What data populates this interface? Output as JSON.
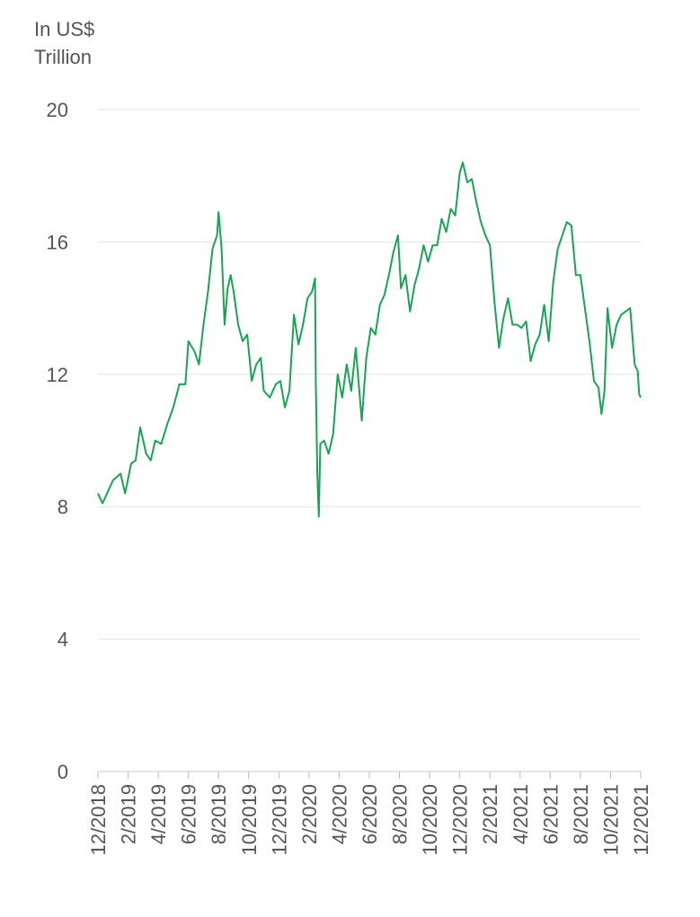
{
  "chart_data": {
    "type": "line",
    "ylabel": [
      "In US$",
      "Trillion"
    ],
    "ylim": [
      0,
      20
    ],
    "yticks": [
      0,
      4,
      8,
      12,
      16,
      20
    ],
    "xlim": [
      0,
      36
    ],
    "xticks": [
      {
        "value": 0,
        "label": "12/2018"
      },
      {
        "value": 2,
        "label": "2/2019"
      },
      {
        "value": 4,
        "label": "4/2019"
      },
      {
        "value": 6,
        "label": "6/2019"
      },
      {
        "value": 8,
        "label": "8/2019"
      },
      {
        "value": 10,
        "label": "10/2019"
      },
      {
        "value": 12,
        "label": "12/2019"
      },
      {
        "value": 14,
        "label": "2/2020"
      },
      {
        "value": 16,
        "label": "4/2020"
      },
      {
        "value": 18,
        "label": "6/2020"
      },
      {
        "value": 20,
        "label": "8/2020"
      },
      {
        "value": 22,
        "label": "10/2020"
      },
      {
        "value": 24,
        "label": "12/2020"
      },
      {
        "value": 26,
        "label": "2/2021"
      },
      {
        "value": 28,
        "label": "4/2021"
      },
      {
        "value": 30,
        "label": "6/2021"
      },
      {
        "value": 32,
        "label": "8/2021"
      },
      {
        "value": 34,
        "label": "10/2021"
      },
      {
        "value": 36,
        "label": "12/2021"
      }
    ],
    "grid": true,
    "series": [
      {
        "color": "#1aa355",
        "x": [
          0,
          0.3,
          0.6,
          1.0,
          1.5,
          1.8,
          2.2,
          2.5,
          2.8,
          3.2,
          3.5,
          3.8,
          4.2,
          4.6,
          5.0,
          5.4,
          5.8,
          6.0,
          6.4,
          6.7,
          7.0,
          7.3,
          7.6,
          7.9,
          8.0,
          8.2,
          8.4,
          8.6,
          8.8,
          9.0,
          9.3,
          9.6,
          9.9,
          10.2,
          10.5,
          10.8,
          11.0,
          11.4,
          11.8,
          12.1,
          12.4,
          12.7,
          13.0,
          13.3,
          13.6,
          13.9,
          14.2,
          14.4,
          14.45,
          14.55,
          14.65,
          14.75,
          15.0,
          15.3,
          15.6,
          15.9,
          16.2,
          16.5,
          16.8,
          17.1,
          17.5,
          17.8,
          18.1,
          18.4,
          18.7,
          19.0,
          19.3,
          19.6,
          19.9,
          20.1,
          20.4,
          20.7,
          21.0,
          21.3,
          21.6,
          21.9,
          22.2,
          22.5,
          22.8,
          23.1,
          23.4,
          23.7,
          24.0,
          24.2,
          24.5,
          24.8,
          25.1,
          25.4,
          25.7,
          26.0,
          26.3,
          26.6,
          26.9,
          27.2,
          27.5,
          27.8,
          28.1,
          28.4,
          28.7,
          29.0,
          29.3,
          29.6,
          29.9,
          30.2,
          30.5,
          30.8,
          31.1,
          31.4,
          31.7,
          32.0,
          32.3,
          32.6,
          32.9,
          33.2,
          33.4,
          33.6,
          33.8,
          34.1,
          34.4,
          34.7,
          35.0,
          35.3,
          35.6,
          35.8,
          35.9,
          36.0
        ],
        "values": [
          8.4,
          8.1,
          8.4,
          8.8,
          9.0,
          8.4,
          9.3,
          9.4,
          10.4,
          9.6,
          9.4,
          10.0,
          9.9,
          10.5,
          11.0,
          11.7,
          11.7,
          13.0,
          12.7,
          12.3,
          13.5,
          14.5,
          15.8,
          16.2,
          16.9,
          15.8,
          13.5,
          14.6,
          15.0,
          14.5,
          13.5,
          13.0,
          13.2,
          11.8,
          12.3,
          12.5,
          11.5,
          11.3,
          11.7,
          11.8,
          11.0,
          11.5,
          13.8,
          12.9,
          13.5,
          14.3,
          14.5,
          14.9,
          11.8,
          9.0,
          7.7,
          9.9,
          10.0,
          9.6,
          10.2,
          12.0,
          11.3,
          12.3,
          11.5,
          12.8,
          10.6,
          12.5,
          13.4,
          13.2,
          14.1,
          14.4,
          15.0,
          15.7,
          16.2,
          14.6,
          15.0,
          13.9,
          14.7,
          15.2,
          15.9,
          15.4,
          15.9,
          15.9,
          16.7,
          16.3,
          17.0,
          16.8,
          18.1,
          18.4,
          17.8,
          17.9,
          17.2,
          16.6,
          16.2,
          15.9,
          14.2,
          12.8,
          13.7,
          14.3,
          13.5,
          13.5,
          13.4,
          13.6,
          12.4,
          12.9,
          13.2,
          14.1,
          13.0,
          14.8,
          15.8,
          16.2,
          16.6,
          16.5,
          15.0,
          15.0,
          14.0,
          13.0,
          11.8,
          11.6,
          10.8,
          11.5,
          14.0,
          12.8,
          13.5,
          13.8,
          13.9,
          14.0,
          12.3,
          12.1,
          11.4,
          11.3
        ]
      }
    ]
  }
}
